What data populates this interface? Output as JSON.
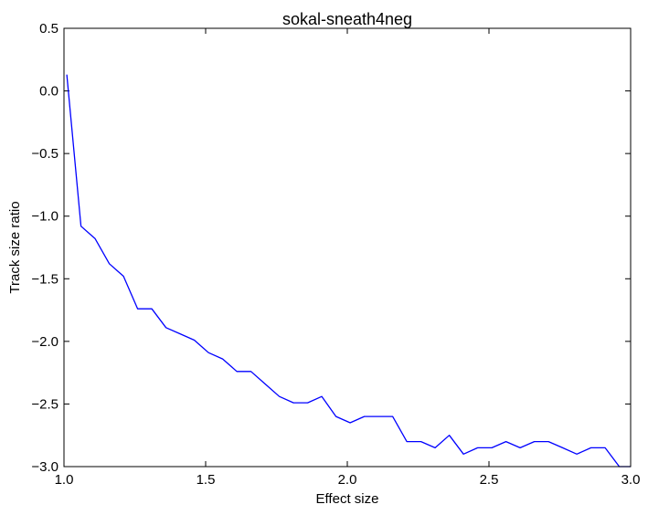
{
  "chart_data": {
    "type": "line",
    "title": "sokal-sneath4neg",
    "xlabel": "Effect size",
    "ylabel": "Track size ratio",
    "xlim": [
      1.0,
      3.0
    ],
    "ylim": [
      -3.0,
      0.5
    ],
    "grid": false,
    "xticks": [
      1.0,
      1.5,
      2.0,
      2.5,
      3.0
    ],
    "xtick_labels": [
      "1.0",
      "1.5",
      "2.0",
      "2.5",
      "3.0"
    ],
    "yticks": [
      0.5,
      0.0,
      -0.5,
      -1.0,
      -1.5,
      -2.0,
      -2.5,
      -3.0
    ],
    "ytick_labels": [
      "0.5",
      "0.0",
      "−0.5",
      "−1.0",
      "−1.5",
      "−2.0",
      "−2.5",
      "−3.0"
    ],
    "series": [
      {
        "color": "#0000ff",
        "x": [
          1.01,
          1.06,
          1.11,
          1.16,
          1.21,
          1.26,
          1.31,
          1.36,
          1.41,
          1.46,
          1.51,
          1.56,
          1.61,
          1.66,
          1.71,
          1.76,
          1.81,
          1.86,
          1.91,
          1.96,
          2.01,
          2.06,
          2.11,
          2.16,
          2.21,
          2.26,
          2.31,
          2.36,
          2.41,
          2.46,
          2.51,
          2.56,
          2.61,
          2.66,
          2.71,
          2.76,
          2.81,
          2.86,
          2.91,
          2.96,
          3.0
        ],
        "y": [
          0.13,
          -1.08,
          -1.18,
          -1.38,
          -1.48,
          -1.74,
          -1.74,
          -1.89,
          -1.94,
          -1.99,
          -2.09,
          -2.14,
          -2.24,
          -2.24,
          -2.34,
          -2.44,
          -2.49,
          -2.49,
          -2.44,
          -2.6,
          -2.65,
          -2.6,
          -2.6,
          -2.6,
          -2.8,
          -2.8,
          -2.85,
          -2.75,
          -2.9,
          -2.85,
          -2.85,
          -2.8,
          -2.85,
          -2.8,
          -2.8,
          -2.85,
          -2.9,
          -2.85,
          -2.85,
          -3.0,
          -3.0
        ]
      }
    ]
  }
}
